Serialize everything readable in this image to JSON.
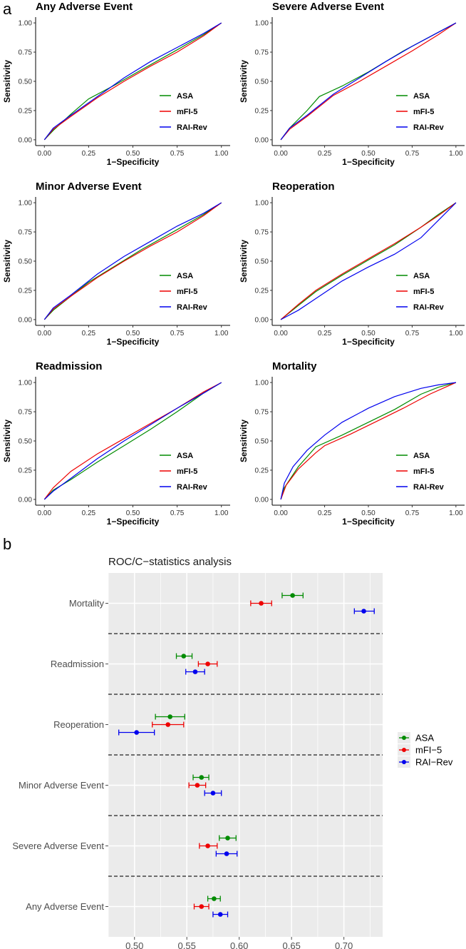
{
  "figure": {
    "label_a": "a",
    "label_b": "b"
  },
  "colors": {
    "ASA": "#008B00",
    "mFI-5": "#EE0000",
    "RAI-Rev": "#0000EE"
  },
  "chart_data": [
    {
      "type": "line",
      "panel": "a",
      "xlabel": "1−Specificity",
      "ylabel": "Sensitivity",
      "xlim": [
        0,
        1
      ],
      "ylim": [
        0,
        1
      ],
      "ticks": [
        "0.00",
        "0.25",
        "0.50",
        "0.75",
        "1.00"
      ],
      "legend": [
        "ASA",
        "mFI-5",
        "RAI-Rev"
      ],
      "legend_position": "bottom-right",
      "subplots": [
        {
          "title": "Any Adverse Event",
          "series": [
            {
              "name": "ASA",
              "x": [
                0,
                0.05,
                0.15,
                0.25,
                0.4,
                0.55,
                0.75,
                0.9,
                1
              ],
              "y": [
                0,
                0.08,
                0.22,
                0.35,
                0.47,
                0.6,
                0.77,
                0.9,
                1
              ]
            },
            {
              "name": "mFI-5",
              "x": [
                0,
                0.05,
                0.15,
                0.3,
                0.45,
                0.6,
                0.75,
                0.9,
                1
              ],
              "y": [
                0,
                0.09,
                0.2,
                0.36,
                0.5,
                0.63,
                0.75,
                0.89,
                1
              ]
            },
            {
              "name": "RAI-Rev",
              "x": [
                0,
                0.05,
                0.15,
                0.3,
                0.45,
                0.6,
                0.75,
                0.9,
                1
              ],
              "y": [
                0,
                0.1,
                0.21,
                0.37,
                0.53,
                0.67,
                0.79,
                0.91,
                1
              ]
            }
          ]
        },
        {
          "title": "Severe Adverse Event",
          "series": [
            {
              "name": "ASA",
              "x": [
                0,
                0.05,
                0.15,
                0.22,
                0.35,
                0.5,
                0.7,
                0.9,
                1
              ],
              "y": [
                0,
                0.1,
                0.25,
                0.37,
                0.46,
                0.58,
                0.76,
                0.92,
                1
              ]
            },
            {
              "name": "mFI-5",
              "x": [
                0,
                0.05,
                0.15,
                0.3,
                0.45,
                0.6,
                0.75,
                0.9,
                1
              ],
              "y": [
                0,
                0.09,
                0.2,
                0.38,
                0.5,
                0.63,
                0.76,
                0.9,
                1
              ]
            },
            {
              "name": "RAI-Rev",
              "x": [
                0,
                0.05,
                0.15,
                0.3,
                0.45,
                0.6,
                0.75,
                0.9,
                1
              ],
              "y": [
                0,
                0.1,
                0.21,
                0.39,
                0.53,
                0.67,
                0.8,
                0.92,
                1
              ]
            }
          ]
        },
        {
          "title": "Minor Adverse Event",
          "series": [
            {
              "name": "ASA",
              "x": [
                0,
                0.05,
                0.15,
                0.25,
                0.4,
                0.55,
                0.75,
                0.9,
                1
              ],
              "y": [
                0,
                0.08,
                0.2,
                0.32,
                0.46,
                0.6,
                0.77,
                0.9,
                1
              ]
            },
            {
              "name": "mFI-5",
              "x": [
                0,
                0.05,
                0.15,
                0.3,
                0.45,
                0.6,
                0.75,
                0.9,
                1
              ],
              "y": [
                0,
                0.09,
                0.2,
                0.36,
                0.5,
                0.63,
                0.75,
                0.89,
                1
              ]
            },
            {
              "name": "RAI-Rev",
              "x": [
                0,
                0.05,
                0.15,
                0.3,
                0.45,
                0.6,
                0.75,
                0.9,
                1
              ],
              "y": [
                0,
                0.1,
                0.21,
                0.39,
                0.54,
                0.67,
                0.8,
                0.91,
                1
              ]
            }
          ]
        },
        {
          "title": "Reoperation",
          "series": [
            {
              "name": "ASA",
              "x": [
                0,
                0.1,
                0.2,
                0.35,
                0.5,
                0.65,
                0.8,
                0.9,
                1
              ],
              "y": [
                0,
                0.12,
                0.24,
                0.38,
                0.51,
                0.64,
                0.79,
                0.9,
                1
              ]
            },
            {
              "name": "mFI-5",
              "x": [
                0,
                0.1,
                0.2,
                0.35,
                0.5,
                0.65,
                0.8,
                0.9,
                1
              ],
              "y": [
                0,
                0.13,
                0.25,
                0.39,
                0.52,
                0.65,
                0.79,
                0.89,
                1
              ]
            },
            {
              "name": "RAI-Rev",
              "x": [
                0,
                0.1,
                0.2,
                0.35,
                0.5,
                0.65,
                0.8,
                0.9,
                1
              ],
              "y": [
                0,
                0.08,
                0.18,
                0.33,
                0.45,
                0.56,
                0.7,
                0.85,
                1
              ]
            }
          ]
        },
        {
          "title": "Readmission",
          "series": [
            {
              "name": "ASA",
              "x": [
                0,
                0.05,
                0.15,
                0.3,
                0.45,
                0.6,
                0.75,
                0.9,
                1
              ],
              "y": [
                0,
                0.08,
                0.17,
                0.32,
                0.46,
                0.6,
                0.75,
                0.91,
                1
              ]
            },
            {
              "name": "mFI-5",
              "x": [
                0,
                0.05,
                0.15,
                0.3,
                0.45,
                0.6,
                0.75,
                0.9,
                1
              ],
              "y": [
                0,
                0.1,
                0.24,
                0.39,
                0.52,
                0.65,
                0.78,
                0.92,
                1
              ]
            },
            {
              "name": "RAI-Rev",
              "x": [
                0,
                0.05,
                0.15,
                0.3,
                0.45,
                0.6,
                0.75,
                0.9,
                1
              ],
              "y": [
                0,
                0.07,
                0.18,
                0.35,
                0.5,
                0.64,
                0.78,
                0.91,
                1
              ]
            }
          ]
        },
        {
          "title": "Mortality",
          "series": [
            {
              "name": "ASA",
              "x": [
                0,
                0.02,
                0.1,
                0.2,
                0.35,
                0.5,
                0.65,
                0.8,
                0.9,
                1
              ],
              "y": [
                0,
                0.1,
                0.28,
                0.45,
                0.55,
                0.66,
                0.77,
                0.9,
                0.96,
                1
              ]
            },
            {
              "name": "mFI-5",
              "x": [
                0,
                0.03,
                0.1,
                0.2,
                0.25,
                0.4,
                0.55,
                0.7,
                0.85,
                1
              ],
              "y": [
                0,
                0.12,
                0.26,
                0.4,
                0.46,
                0.56,
                0.67,
                0.78,
                0.9,
                1
              ]
            },
            {
              "name": "RAI-Rev",
              "x": [
                0,
                0.02,
                0.07,
                0.15,
                0.25,
                0.35,
                0.5,
                0.65,
                0.8,
                0.9,
                1
              ],
              "y": [
                0,
                0.14,
                0.28,
                0.42,
                0.55,
                0.66,
                0.78,
                0.88,
                0.95,
                0.98,
                1
              ]
            }
          ]
        }
      ]
    },
    {
      "type": "scatter",
      "panel": "b",
      "subtype": "forest-plot",
      "title": "ROC/C−statistics analysis",
      "xlim": [
        0.475,
        0.737
      ],
      "xticks": [
        "0.50",
        "0.55",
        "0.60",
        "0.65",
        "0.70"
      ],
      "legend": [
        "ASA",
        "mFI−5",
        "RAI−Rev"
      ],
      "legend_position": "right",
      "categories": [
        "Mortality",
        "Readmission",
        "Reoperation",
        "Minor Adverse Event",
        "Severe Adverse Event",
        "Any Adverse Event"
      ],
      "series": [
        {
          "name": "ASA",
          "values": [
            0.651,
            0.547,
            0.534,
            0.564,
            0.589,
            0.576
          ],
          "lower": [
            0.641,
            0.54,
            0.52,
            0.556,
            0.581,
            0.57
          ],
          "upper": [
            0.661,
            0.555,
            0.548,
            0.571,
            0.597,
            0.582
          ]
        },
        {
          "name": "mFI-5",
          "values": [
            0.621,
            0.57,
            0.532,
            0.56,
            0.57,
            0.564
          ],
          "lower": [
            0.611,
            0.561,
            0.517,
            0.552,
            0.562,
            0.557
          ],
          "upper": [
            0.631,
            0.579,
            0.547,
            0.568,
            0.579,
            0.571
          ]
        },
        {
          "name": "RAI-Rev",
          "values": [
            0.719,
            0.558,
            0.502,
            0.575,
            0.588,
            0.582
          ],
          "lower": [
            0.71,
            0.549,
            0.485,
            0.567,
            0.578,
            0.575
          ],
          "upper": [
            0.729,
            0.567,
            0.519,
            0.583,
            0.598,
            0.589
          ]
        }
      ]
    }
  ]
}
